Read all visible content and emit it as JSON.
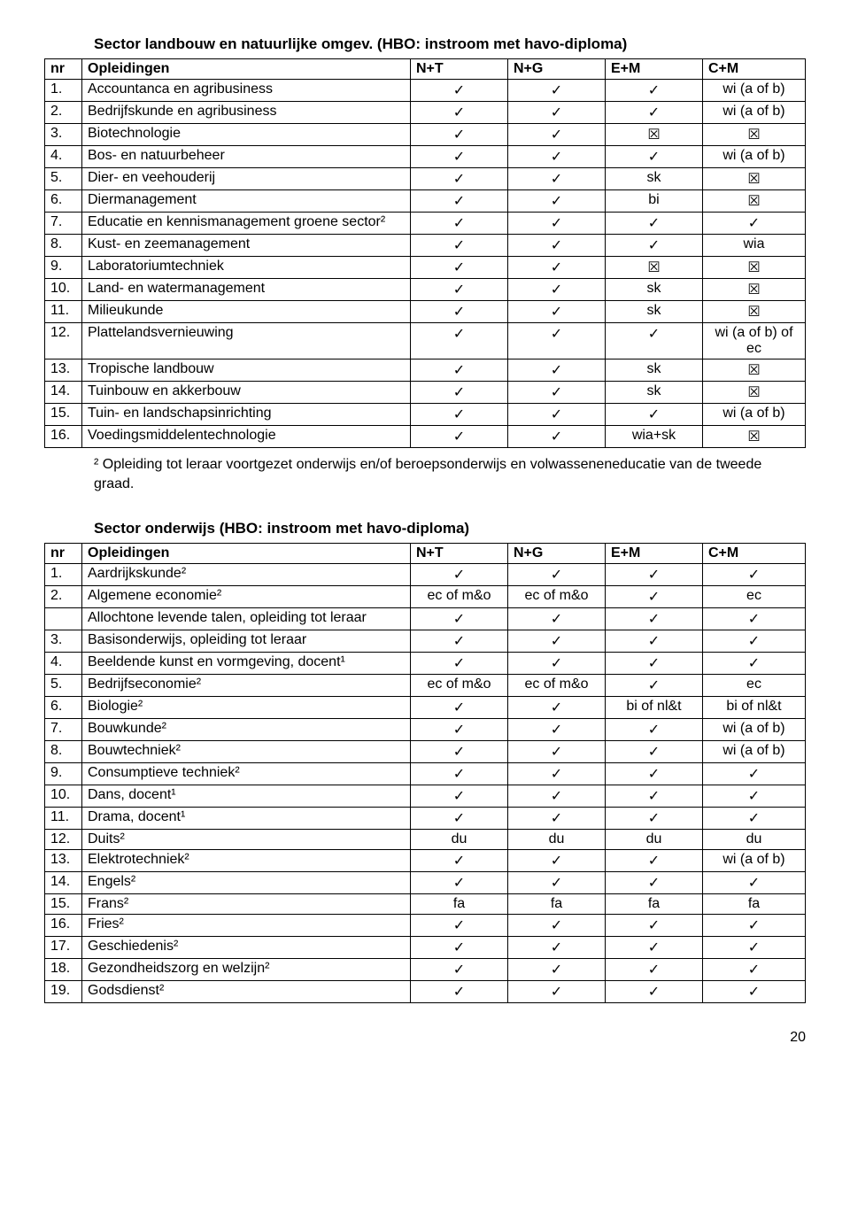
{
  "check": "✓",
  "cross": "☒",
  "section1": {
    "title": "Sector landbouw en natuurlijke omgev. (HBO: instroom met havo-diploma)",
    "headers": [
      "nr",
      "Opleidingen",
      "N+T",
      "N+G",
      "E+M",
      "C+M"
    ],
    "rows": [
      {
        "nr": "1.",
        "name": "Accountanca en agribusiness",
        "c": [
          "✓",
          "✓",
          "✓",
          "wi (a of b)"
        ]
      },
      {
        "nr": "2.",
        "name": "Bedrijfskunde en agribusiness",
        "c": [
          "✓",
          "✓",
          "✓",
          "wi (a of b)"
        ]
      },
      {
        "nr": "3.",
        "name": "Biotechnologie",
        "c": [
          "✓",
          "✓",
          "☒",
          "☒"
        ]
      },
      {
        "nr": "4.",
        "name": "Bos- en natuurbeheer",
        "c": [
          "✓",
          "✓",
          "✓",
          "wi (a of b)"
        ]
      },
      {
        "nr": "5.",
        "name": "Dier- en veehouderij",
        "c": [
          "✓",
          "✓",
          "sk",
          "☒"
        ]
      },
      {
        "nr": "6.",
        "name": "Diermanagement",
        "c": [
          "✓",
          "✓",
          "bi",
          "☒"
        ]
      },
      {
        "nr": "7.",
        "name": "Educatie en kennismanagement groene sector²",
        "c": [
          "✓",
          "✓",
          "✓",
          "✓"
        ]
      },
      {
        "nr": "8.",
        "name": "Kust- en zeemanagement",
        "c": [
          "✓",
          "✓",
          "✓",
          "wia"
        ]
      },
      {
        "nr": "9.",
        "name": "Laboratoriumtechniek",
        "c": [
          "✓",
          "✓",
          "☒",
          "☒"
        ]
      },
      {
        "nr": "10.",
        "name": "Land- en watermanagement",
        "c": [
          "✓",
          "✓",
          "sk",
          "☒"
        ]
      },
      {
        "nr": "11.",
        "name": "Milieukunde",
        "c": [
          "✓",
          "✓",
          "sk",
          "☒"
        ]
      },
      {
        "nr": "12.",
        "name": "Plattelandsvernieuwing",
        "c": [
          "✓",
          "✓",
          "✓",
          "wi (a of b) of ec"
        ]
      },
      {
        "nr": "13.",
        "name": "Tropische landbouw",
        "c": [
          "✓",
          "✓",
          "sk",
          "☒"
        ]
      },
      {
        "nr": "14.",
        "name": "Tuinbouw en akkerbouw",
        "c": [
          "✓",
          "✓",
          "sk",
          "☒"
        ]
      },
      {
        "nr": "15.",
        "name": "Tuin- en landschapsinrichting",
        "c": [
          "✓",
          "✓",
          "✓",
          "wi (a of b)"
        ]
      },
      {
        "nr": "16.",
        "name": "Voedingsmiddelentechnologie",
        "c": [
          "✓",
          "✓",
          "wia+sk",
          "☒"
        ]
      }
    ],
    "footnote": "² Opleiding tot leraar voortgezet onderwijs en/of beroepsonderwijs en volwasseneneducatie van de tweede graad."
  },
  "section2": {
    "title": "Sector onderwijs (HBO: instroom met havo-diploma)",
    "headers": [
      "nr",
      "Opleidingen",
      "N+T",
      "N+G",
      "E+M",
      "C+M"
    ],
    "rows": [
      {
        "nr": "1.",
        "name": "Aardrijkskunde²",
        "c": [
          "✓",
          "✓",
          "✓",
          "✓"
        ]
      },
      {
        "nr": "2.",
        "name": "Algemene economie²",
        "c": [
          "ec of m&o",
          "ec of m&o",
          "✓",
          "ec"
        ]
      },
      {
        "nr": "",
        "name": "Allochtone levende talen, opleiding tot leraar",
        "c": [
          "✓",
          "✓",
          "✓",
          "✓"
        ]
      },
      {
        "nr": "3.",
        "name": "Basisonderwijs, opleiding tot leraar",
        "c": [
          "✓",
          "✓",
          "✓",
          "✓"
        ]
      },
      {
        "nr": "4.",
        "name": "Beeldende kunst en vormgeving, docent¹",
        "c": [
          "✓",
          "✓",
          "✓",
          "✓"
        ]
      },
      {
        "nr": "5.",
        "name": "Bedrijfseconomie²",
        "c": [
          "ec of m&o",
          "ec of m&o",
          "✓",
          "ec"
        ]
      },
      {
        "nr": "6.",
        "name": "Biologie²",
        "c": [
          "✓",
          "✓",
          "bi of nl&t",
          "bi of nl&t"
        ]
      },
      {
        "nr": "7.",
        "name": "Bouwkunde²",
        "c": [
          "✓",
          "✓",
          "✓",
          "wi (a of b)"
        ]
      },
      {
        "nr": "8.",
        "name": "Bouwtechniek²",
        "c": [
          "✓",
          "✓",
          "✓",
          "wi (a of b)"
        ]
      },
      {
        "nr": "9.",
        "name": "Consumptieve techniek²",
        "c": [
          "✓",
          "✓",
          "✓",
          "✓"
        ]
      },
      {
        "nr": "10.",
        "name": "Dans, docent¹",
        "c": [
          "✓",
          "✓",
          "✓",
          "✓"
        ]
      },
      {
        "nr": "11.",
        "name": "Drama, docent¹",
        "c": [
          "✓",
          "✓",
          "✓",
          "✓"
        ]
      },
      {
        "nr": "12.",
        "name": "Duits²",
        "c": [
          "du",
          "du",
          "du",
          "du"
        ]
      },
      {
        "nr": "13.",
        "name": "Elektrotechniek²",
        "c": [
          "✓",
          "✓",
          "✓",
          "wi (a of b)"
        ]
      },
      {
        "nr": "14.",
        "name": "Engels²",
        "c": [
          "✓",
          "✓",
          "✓",
          "✓"
        ]
      },
      {
        "nr": "15.",
        "name": "Frans²",
        "c": [
          "fa",
          "fa",
          "fa",
          "fa"
        ]
      },
      {
        "nr": "16.",
        "name": "Fries²",
        "c": [
          "✓",
          "✓",
          "✓",
          "✓"
        ]
      },
      {
        "nr": "17.",
        "name": "Geschiedenis²",
        "c": [
          "✓",
          "✓",
          "✓",
          "✓"
        ]
      },
      {
        "nr": "18.",
        "name": "Gezondheidszorg en welzijn²",
        "c": [
          "✓",
          "✓",
          "✓",
          "✓"
        ]
      },
      {
        "nr": "19.",
        "name": "Godsdienst²",
        "c": [
          "✓",
          "✓",
          "✓",
          "✓"
        ]
      }
    ]
  },
  "pageNumber": "20"
}
